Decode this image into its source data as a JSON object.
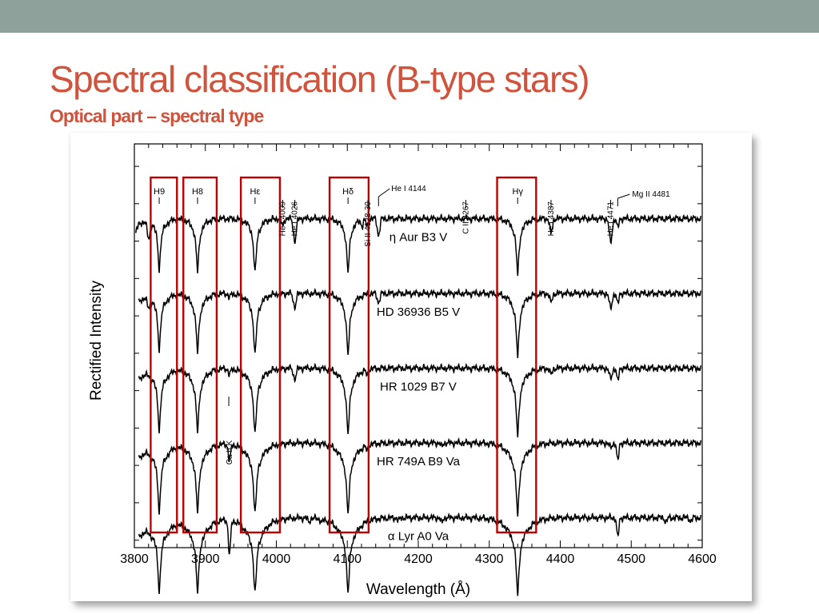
{
  "slide": {
    "title": "Spectral classification (B-type stars)",
    "subtitle": "Optical part – spectral type"
  },
  "colors": {
    "top_bar": "#8fa19b",
    "title": "#d0533d",
    "box": "#c00000",
    "trace": "#000000"
  },
  "chart_data": {
    "type": "line",
    "title": "",
    "xlabel": "Wavelength (Å)",
    "ylabel": "Rectified Intensity",
    "xlim": [
      3800,
      4600
    ],
    "x_ticks": [
      3800,
      3900,
      4000,
      4100,
      4200,
      4300,
      4400,
      4500,
      4600
    ],
    "y_ticks_labeled": false,
    "series": [
      {
        "name": "η Aur  B3 V",
        "continuum_level": 4.3
      },
      {
        "name": "HD 36936  B5 V",
        "continuum_level": 3.3
      },
      {
        "name": "HR 1029  B7 V",
        "continuum_level": 2.3
      },
      {
        "name": "HR 749A  B9 Va",
        "continuum_level": 1.3
      },
      {
        "name": "α Lyr  A0 Va",
        "continuum_level": 0.3
      }
    ],
    "highlight_regions": [
      {
        "label": "H9",
        "x_range": [
          3823,
          3860
        ],
        "line": 3835
      },
      {
        "label": "H8",
        "x_range": [
          3869,
          3916
        ],
        "line": 3889
      },
      {
        "label": "Hε",
        "x_range": [
          3950,
          4005
        ],
        "line": 3970
      },
      {
        "label": "Hδ",
        "x_range": [
          4075,
          4130
        ],
        "line": 4101
      },
      {
        "label": "Hγ",
        "x_range": [
          4311,
          4366
        ],
        "line": 4340
      }
    ],
    "line_annotations": [
      {
        "label": "He I 4009",
        "x": 4009
      },
      {
        "label": "He I 4026",
        "x": 4026
      },
      {
        "label": "Si II 4128-30",
        "x": 4129
      },
      {
        "label": "He I 4144",
        "x": 4144
      },
      {
        "label": "C II 4267",
        "x": 4267
      },
      {
        "label": "He I 4387",
        "x": 4387
      },
      {
        "label": "He I 4471",
        "x": 4471
      },
      {
        "label": "Mg II 4481",
        "x": 4481
      },
      {
        "label": "Ca II K",
        "x": 3933
      }
    ]
  }
}
